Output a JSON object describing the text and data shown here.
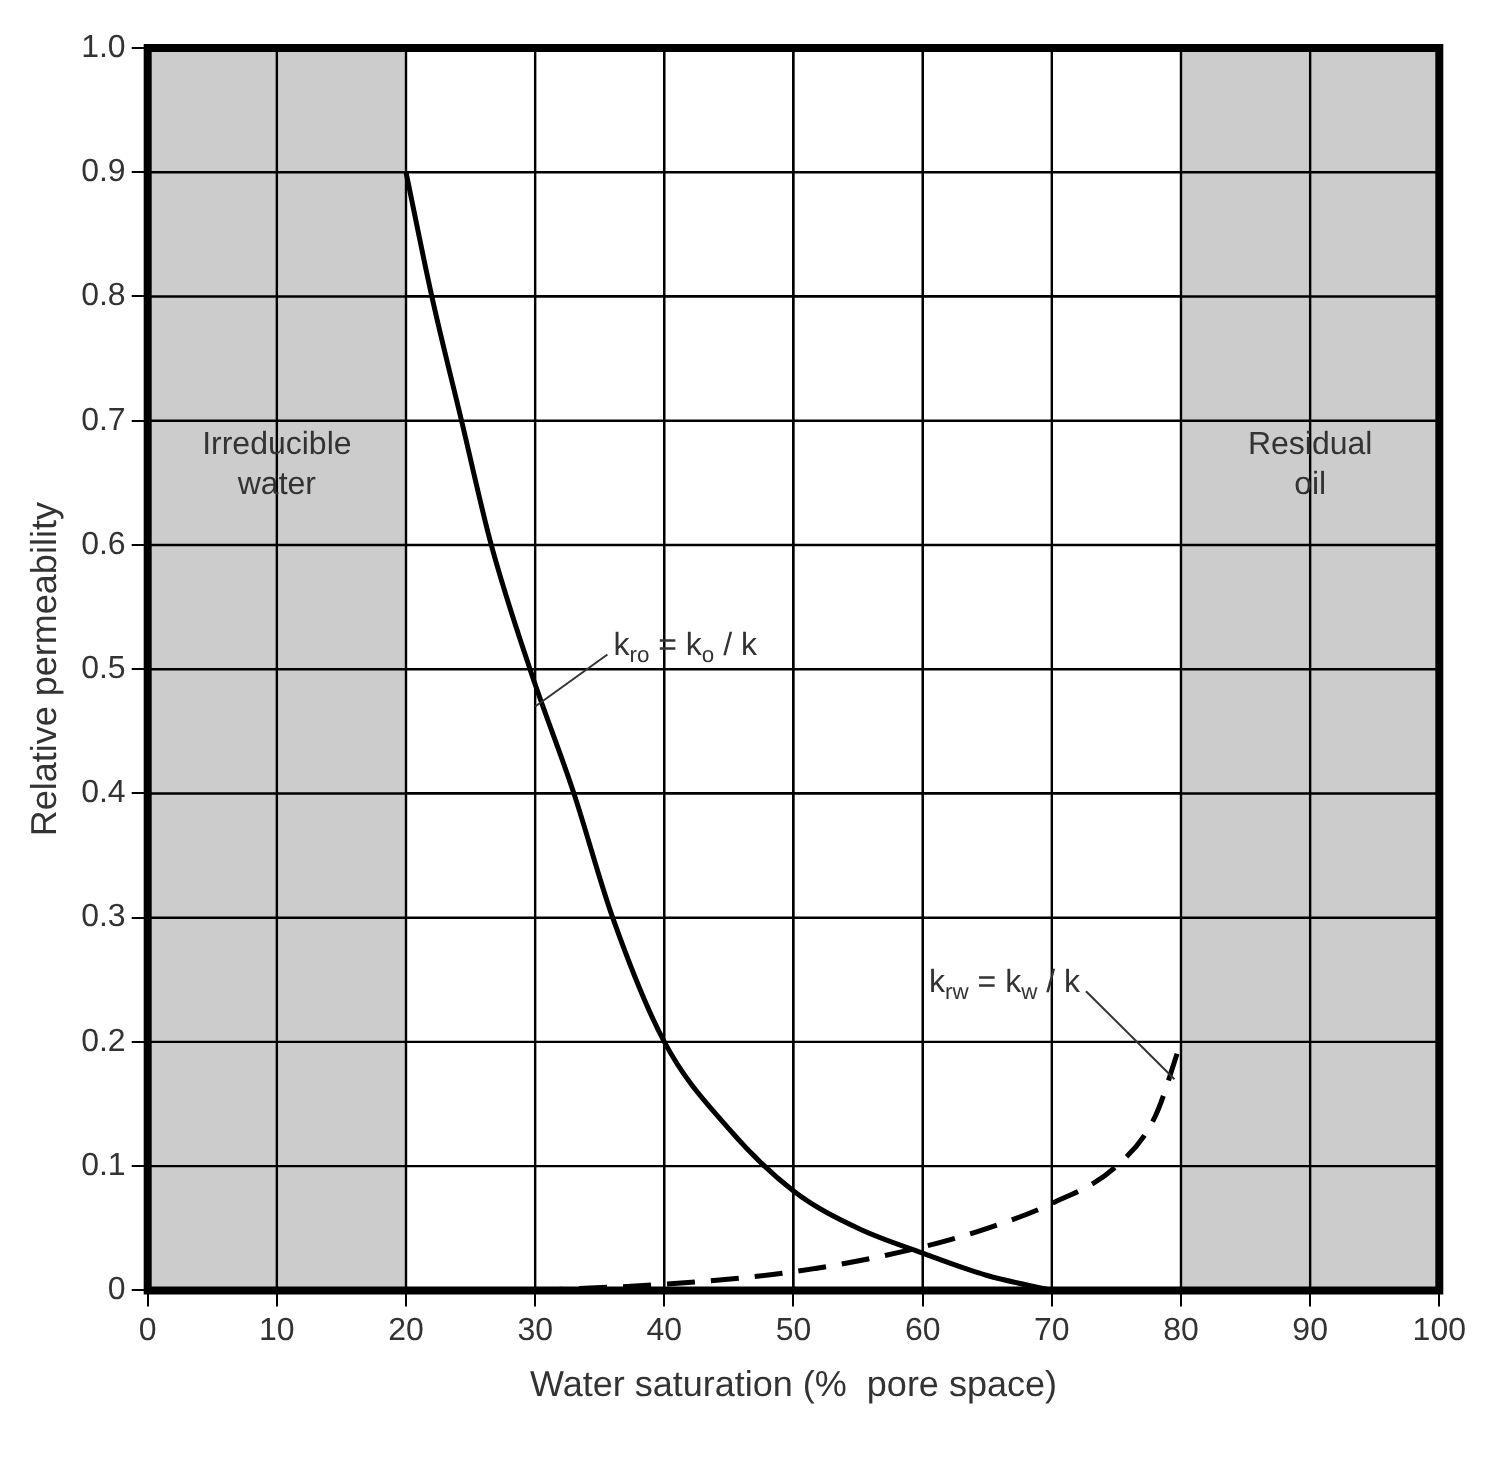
{
  "chart_data": {
    "type": "line",
    "xlabel": "Water saturation (%  pore space)",
    "ylabel": "Relative permeability",
    "xlim": [
      0,
      100
    ],
    "xticks": [
      0,
      10,
      20,
      30,
      40,
      50,
      60,
      70,
      80,
      90,
      100
    ],
    "ylim": [
      0,
      1
    ],
    "yticks": [
      0,
      0.1,
      0.2,
      0.3,
      0.4,
      0.5,
      0.6,
      0.7,
      0.8,
      0.9,
      {
        "value": 1,
        "label": "1.0"
      }
    ],
    "grid": true,
    "legend": false,
    "marker": "none",
    "series": [
      {
        "color": "#000000",
        "line_style": "solid",
        "x": [
          20,
          22,
          24.3,
          26.6,
          29.6,
          33,
          36,
          40,
          45,
          50,
          55,
          60,
          65,
          70
        ],
        "values": [
          0.9,
          0.8,
          0.7,
          0.6,
          0.5,
          0.4,
          0.3,
          0.2,
          0.13,
          0.08,
          0.05,
          0.03,
          0.012,
          0
        ]
      },
      {
        "color": "#000000",
        "line_style": "dashed",
        "x": [
          30,
          40,
          50,
          60,
          65,
          70,
          75,
          78,
          80
        ],
        "values": [
          0,
          0.005,
          0.015,
          0.035,
          0.05,
          0.07,
          0.1,
          0.14,
          0.2
        ]
      }
    ],
    "bands": [
      {
        "axis": "x",
        "from": 0,
        "to": 20,
        "label": "Irreducible water",
        "color": "#cccccc"
      },
      {
        "axis": "x",
        "from": 80,
        "to": 100,
        "label": "Residual oil",
        "color": "#cccccc"
      }
    ],
    "annotations": [
      {
        "text": "k$_{ro}$ = k$_{o}$ / k",
        "x": 30,
        "y": 0.47
      },
      {
        "text": "k$_{rw}$ = k$_{w}$ / k",
        "x": 79.5,
        "y": 0.17
      }
    ]
  }
}
